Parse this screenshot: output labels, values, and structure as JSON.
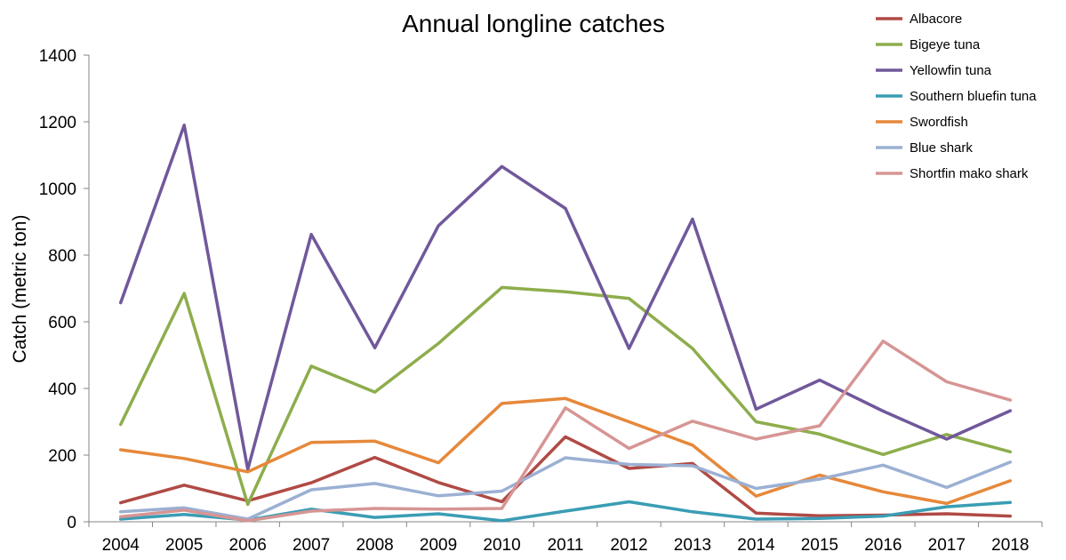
{
  "chart_data": {
    "type": "line",
    "title": "Annual longline catches",
    "xlabel": "",
    "ylabel": "Catch (metric ton)",
    "ylim": [
      0,
      1400
    ],
    "yticks": [
      "0",
      "200",
      "400",
      "600",
      "800",
      "1000",
      "1200",
      "1400"
    ],
    "categories": [
      "2004",
      "2005",
      "2006",
      "2007",
      "2008",
      "2009",
      "2010",
      "2011",
      "2012",
      "2013",
      "2014",
      "2015",
      "2016",
      "2017",
      "2018"
    ],
    "grid": false,
    "legend_position": "top-right",
    "series": [
      {
        "name": "Albacore",
        "color": "#b04a45",
        "values": [
          57,
          110,
          63,
          117,
          193,
          118,
          60,
          255,
          160,
          175,
          26,
          18,
          20,
          24,
          17
        ]
      },
      {
        "name": "Bigeye tuna",
        "color": "#8dad4c",
        "values": [
          292,
          685,
          52,
          467,
          389,
          535,
          703,
          690,
          670,
          520,
          300,
          263,
          202,
          262,
          210
        ]
      },
      {
        "name": "Yellowfin tuna",
        "color": "#71589b",
        "values": [
          657,
          1190,
          157,
          862,
          522,
          888,
          1066,
          940,
          520,
          908,
          338,
          425,
          332,
          248,
          333
        ]
      },
      {
        "name": "Southern bluefin tuna",
        "color": "#3a9db4",
        "values": [
          8,
          22,
          5,
          38,
          13,
          24,
          3,
          32,
          60,
          30,
          8,
          10,
          17,
          45,
          58
        ]
      },
      {
        "name": "Swordfish",
        "color": "#e6883a",
        "values": [
          216,
          190,
          150,
          238,
          242,
          177,
          355,
          370,
          300,
          230,
          77,
          140,
          90,
          55,
          123
        ]
      },
      {
        "name": "Blue shark",
        "color": "#9bb0d3",
        "values": [
          30,
          42,
          8,
          96,
          115,
          78,
          92,
          192,
          172,
          168,
          100,
          128,
          170,
          103,
          179
        ]
      },
      {
        "name": "Shortfin mako shark",
        "color": "#d69594",
        "values": [
          15,
          35,
          3,
          32,
          40,
          38,
          40,
          342,
          220,
          302,
          248,
          288,
          542,
          420,
          365
        ]
      }
    ]
  }
}
